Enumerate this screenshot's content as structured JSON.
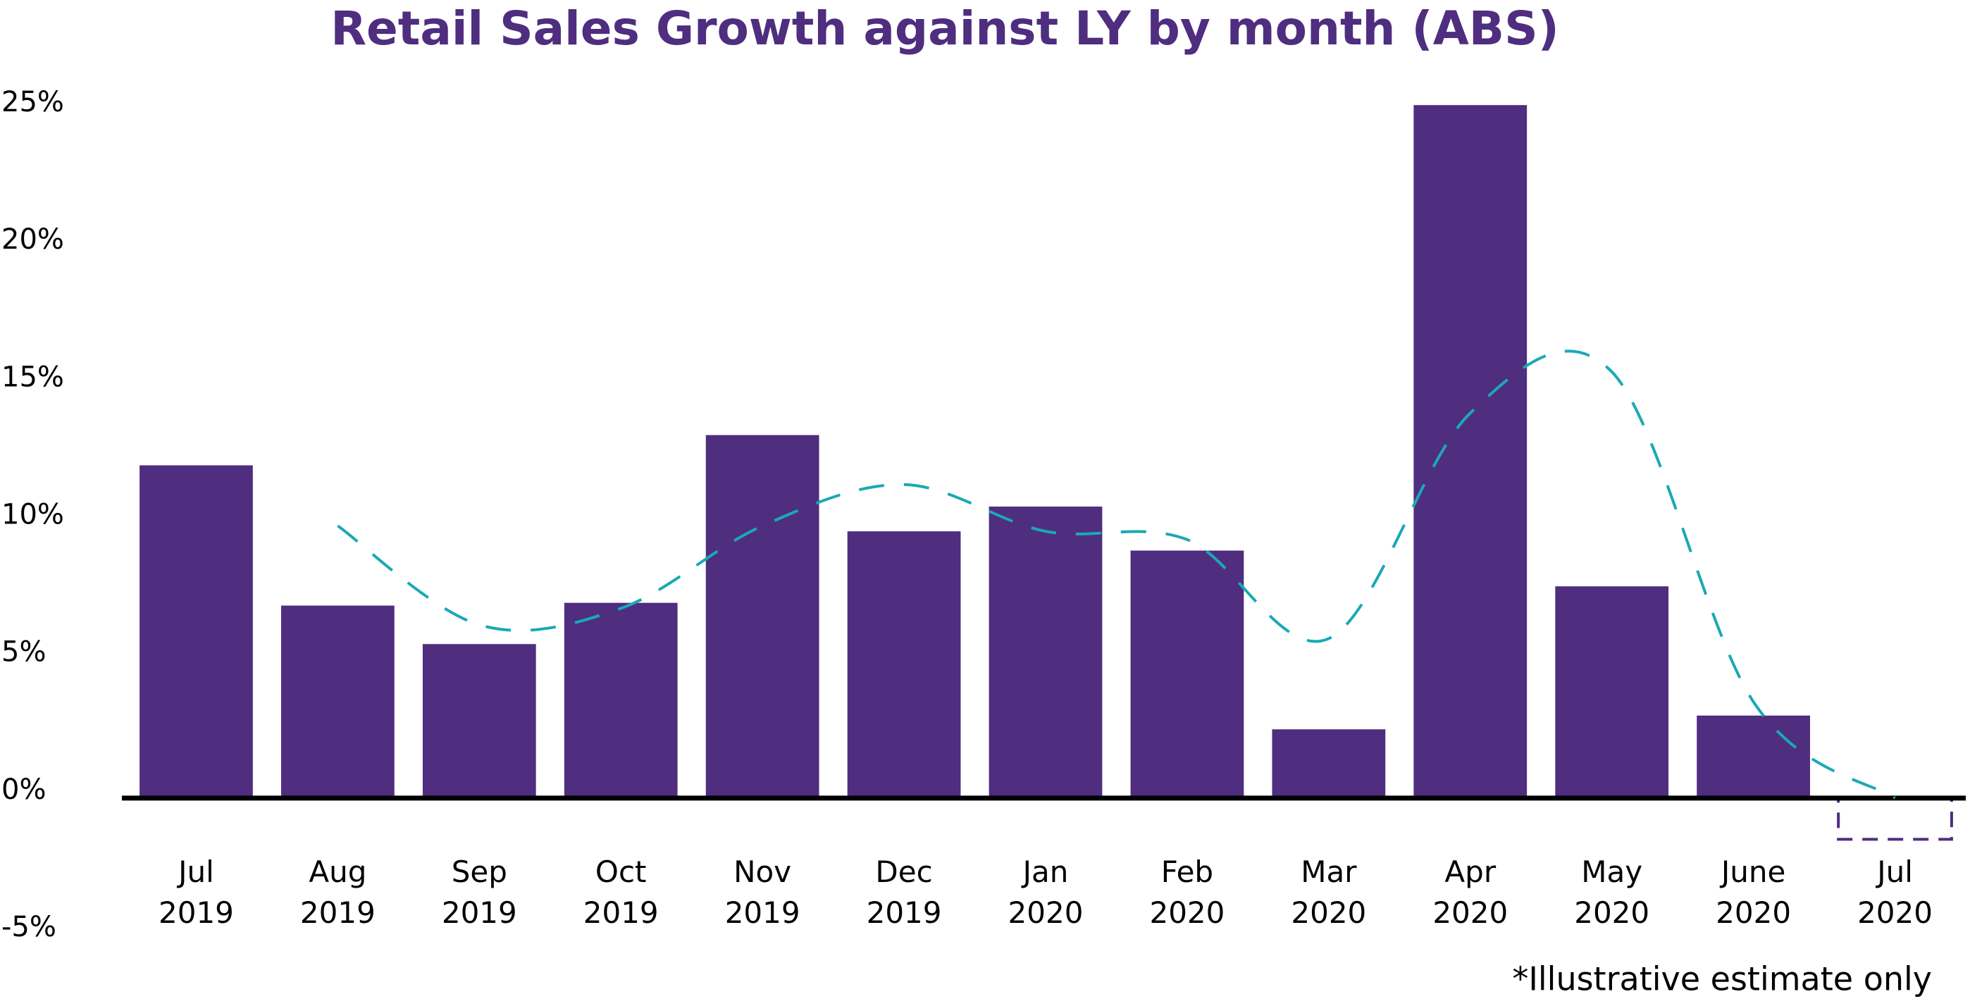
{
  "chart_data": {
    "type": "bar",
    "title": "Retail Sales Growth against LY by month (ABS)",
    "categories": [
      "Jul 2019",
      "Aug 2019",
      "Sep 2019",
      "Oct 2019",
      "Nov 2019",
      "Dec 2019",
      "Jan 2020",
      "Feb 2020",
      "Mar 2020",
      "Apr 2020",
      "May 2020",
      "June 2020",
      "Jul 2020"
    ],
    "values": [
      12.1,
      7.0,
      5.6,
      7.1,
      13.2,
      9.7,
      10.6,
      9.0,
      2.5,
      25.2,
      7.7,
      3.0,
      -1.5
    ],
    "color": "#4f2d7f",
    "trend_values": [
      null,
      9.9,
      6.3,
      6.9,
      9.9,
      11.4,
      9.7,
      9.4,
      5.8,
      14.0,
      15.5,
      3.5,
      0
    ],
    "trend_color": "#1aa9b5",
    "ylim": [
      -5,
      25
    ],
    "yticks": [
      {
        "value": -5,
        "label": "-5%"
      },
      {
        "value": 0,
        "label": "0%"
      },
      {
        "value": 5,
        "label": "5%"
      },
      {
        "value": 10,
        "label": "10%"
      },
      {
        "value": 15,
        "label": "15%"
      },
      {
        "value": 20,
        "label": "20%"
      },
      {
        "value": 25,
        "label": "25%"
      }
    ],
    "annotation": "*Illustrative estimate only",
    "grid": false
  }
}
